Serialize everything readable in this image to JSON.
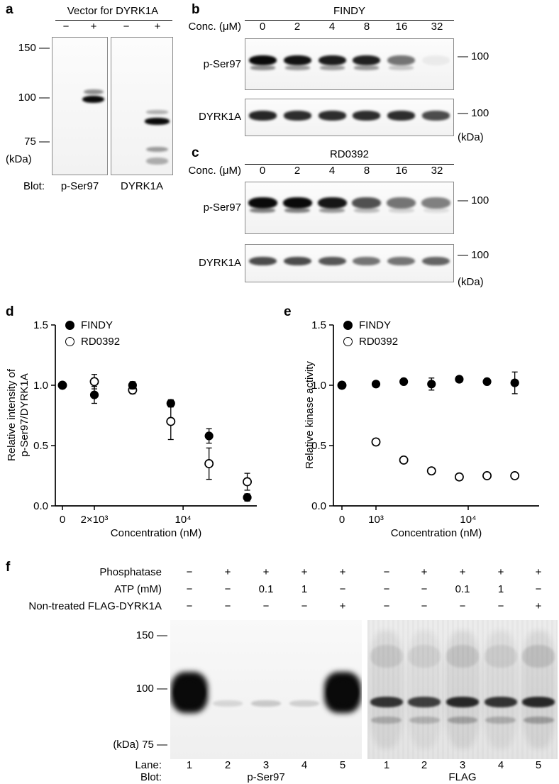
{
  "panel_a": {
    "label": "a",
    "title": "Vector for DYRK1A",
    "signs": [
      "−",
      "+",
      "−",
      "+"
    ],
    "markers": [
      "150 —",
      "100 —",
      "75 —"
    ],
    "kda_label": "(kDa)",
    "blot_label": "Blot:",
    "blot_names": [
      "p-Ser97",
      "DYRK1A"
    ],
    "blot_images": [
      {
        "lanes": 2,
        "bands": [
          {
            "y": 0.45,
            "h": 0.055,
            "w": 0.8,
            "intensities": [
              0,
              1
            ]
          },
          {
            "y": 0.395,
            "h": 0.038,
            "w": 0.74,
            "intensities": [
              0,
              0.45
            ]
          }
        ]
      },
      {
        "lanes": 2,
        "bands": [
          {
            "y": 0.61,
            "h": 0.05,
            "w": 0.8,
            "intensities": [
              0,
              1
            ]
          },
          {
            "y": 0.545,
            "h": 0.03,
            "w": 0.7,
            "intensities": [
              0,
              0.3
            ]
          },
          {
            "y": 0.815,
            "h": 0.038,
            "w": 0.72,
            "intensities": [
              0,
              0.38
            ]
          },
          {
            "y": 0.9,
            "h": 0.05,
            "w": 0.72,
            "intensities": [
              0,
              0.3
            ]
          }
        ]
      }
    ]
  },
  "panel_b": {
    "label": "b",
    "title": "FINDY",
    "conc_label": "Conc. (μM)",
    "conc_values": [
      "0",
      "2",
      "4",
      "8",
      "16",
      "32"
    ],
    "kda_label": "(kDa)",
    "rows": [
      {
        "name": "p-Ser97",
        "marker": "— 100",
        "blot": {
          "lanes": 6,
          "bands": [
            {
              "y": 0.42,
              "h": 0.2,
              "w": 0.8,
              "intensities": [
                1,
                0.96,
                0.92,
                0.9,
                0.55,
                0.05
              ]
            },
            {
              "y": 0.57,
              "h": 0.09,
              "w": 0.72,
              "intensities": [
                0.45,
                0.4,
                0.38,
                0.4,
                0.2,
                0
              ]
            }
          ]
        }
      },
      {
        "name": "DYRK1A",
        "marker": "— 100",
        "blot": {
          "lanes": 6,
          "bands": [
            {
              "y": 0.45,
              "h": 0.26,
              "w": 0.8,
              "intensities": [
                0.88,
                0.85,
                0.85,
                0.85,
                0.85,
                0.72
              ]
            }
          ]
        }
      }
    ]
  },
  "panel_c": {
    "label": "c",
    "title": "RD0392",
    "conc_label": "Conc. (μM)",
    "conc_values": [
      "0",
      "2",
      "4",
      "8",
      "16",
      "32"
    ],
    "kda_label": "(kDa)",
    "rows": [
      {
        "name": "p-Ser97",
        "marker": "— 100",
        "blot": {
          "lanes": 6,
          "bands": [
            {
              "y": 0.4,
              "h": 0.22,
              "w": 0.84,
              "intensities": [
                1,
                1,
                0.95,
                0.7,
                0.55,
                0.5
              ]
            },
            {
              "y": 0.55,
              "h": 0.09,
              "w": 0.74,
              "intensities": [
                0.5,
                0.5,
                0.4,
                0.25,
                0.15,
                0.1
              ]
            }
          ]
        }
      },
      {
        "name": "DYRK1A",
        "marker": "— 100",
        "blot": {
          "lanes": 6,
          "bands": [
            {
              "y": 0.44,
              "h": 0.24,
              "w": 0.8,
              "intensities": [
                0.72,
                0.72,
                0.68,
                0.55,
                0.55,
                0.62
              ]
            }
          ]
        }
      }
    ]
  },
  "chart_data": [
    {
      "panel": "d",
      "type": "scatter",
      "xlabel": "Concentration (nM)",
      "ylabel": "Relative intensity of p-Ser97/DYRK1A",
      "ylabel_lines": [
        "Relative intensity of",
        "p-Ser97/DYRK1A"
      ],
      "ylim": [
        0,
        1.5
      ],
      "yticks": [
        {
          "value": 0,
          "label": "0.0"
        },
        {
          "value": 0.5,
          "label": "0.5"
        },
        {
          "value": 1,
          "label": "1.0"
        },
        {
          "value": 1.5,
          "label": "1.5"
        }
      ],
      "xscale": "log (broken at 0)",
      "xticks": [
        {
          "value": 0,
          "label": "0"
        },
        {
          "value": 2000,
          "label": "2×10³"
        },
        {
          "value": 10000,
          "label": "10⁴"
        }
      ],
      "legend_position": "top-left",
      "series": [
        {
          "name": "FINDY",
          "marker": "filled-circle",
          "x": [
            0,
            2000,
            4000,
            8000,
            16000,
            32000
          ],
          "y": [
            1.0,
            0.92,
            1.0,
            0.85,
            0.58,
            0.07
          ],
          "err": [
            0,
            0.07,
            0.03,
            0.03,
            0.06,
            0.03
          ]
        },
        {
          "name": "RD0392",
          "marker": "open-circle",
          "x": [
            0,
            2000,
            4000,
            8000,
            16000,
            32000
          ],
          "y": [
            1.0,
            1.03,
            0.96,
            0.7,
            0.35,
            0.2
          ],
          "err": [
            0,
            0.06,
            0.03,
            0.15,
            0.13,
            0.07
          ]
        }
      ]
    },
    {
      "panel": "e",
      "type": "scatter",
      "xlabel": "Concentration (nM)",
      "ylabel": "Relative kinase activity",
      "ylabel_lines": [
        "Relative kinase activity"
      ],
      "ylim": [
        0,
        1.5
      ],
      "yticks": [
        {
          "value": 0,
          "label": "0.0"
        },
        {
          "value": 0.5,
          "label": "0.5"
        },
        {
          "value": 1,
          "label": "1.0"
        },
        {
          "value": 1.5,
          "label": "1.5"
        }
      ],
      "xscale": "log (broken at 0)",
      "xticks": [
        {
          "value": 0,
          "label": "0"
        },
        {
          "value": 1000,
          "label": "10³"
        },
        {
          "value": 10000,
          "label": "10⁴"
        }
      ],
      "legend_position": "top-left",
      "series": [
        {
          "name": "FINDY",
          "marker": "filled-circle",
          "x": [
            0,
            1000,
            2000,
            4000,
            8000,
            16000,
            32000
          ],
          "y": [
            1.0,
            1.01,
            1.03,
            1.01,
            1.05,
            1.03,
            1.02
          ],
          "err": [
            0,
            0,
            0,
            0.05,
            0,
            0,
            0.09
          ]
        },
        {
          "name": "RD0392",
          "marker": "open-circle",
          "x": [
            0,
            1000,
            2000,
            4000,
            8000,
            16000,
            32000
          ],
          "y": [
            1.0,
            0.53,
            0.38,
            0.29,
            0.24,
            0.25,
            0.25
          ],
          "err": [
            0,
            0,
            0,
            0,
            0,
            0,
            0
          ]
        }
      ]
    }
  ],
  "panel_f": {
    "label": "f",
    "rows": [
      {
        "label": "Phosphatase",
        "values": [
          "−",
          "+",
          "+",
          "+",
          "+",
          "−",
          "+",
          "+",
          "+",
          "+"
        ]
      },
      {
        "label": "ATP (mM)",
        "values": [
          "−",
          "−",
          "0.1",
          "1",
          "−",
          "−",
          "−",
          "0.1",
          "1",
          "−"
        ]
      },
      {
        "label": "Non-treated FLAG-DYRK1A",
        "values": [
          "−",
          "−",
          "−",
          "−",
          "+",
          "−",
          "−",
          "−",
          "−",
          "+"
        ]
      }
    ],
    "markers": [
      "150 —",
      "100 —"
    ],
    "kda_75_label": "(kDa) 75 —",
    "lane_label": "Lane:",
    "lane_numbers": [
      "1",
      "2",
      "3",
      "4",
      "5",
      "1",
      "2",
      "3",
      "4",
      "5"
    ],
    "blot_label": "Blot:",
    "blot_names": [
      "p-Ser97",
      "FLAG"
    ],
    "blot_images": [
      {
        "lanes": 5,
        "bands": [
          {
            "y": 0.52,
            "h": 0.3,
            "w": 0.96,
            "blob": true,
            "intensities": [
              1,
              0,
              0,
              0,
              1
            ]
          },
          {
            "y": 0.52,
            "h": 0.16,
            "w": 0.82,
            "intensities": [
              1,
              0,
              0,
              0,
              1
            ]
          },
          {
            "y": 0.6,
            "h": 0.045,
            "w": 0.76,
            "intensities": [
              0,
              0.12,
              0.18,
              0.15,
              0
            ]
          }
        ]
      },
      {
        "lanes": 5,
        "bands": [
          {
            "y": 0.5,
            "h": 0.85,
            "w": 0.92,
            "blob": true,
            "intensities": [
              0.07,
              0.05,
              0.08,
              0.06,
              0.08
            ]
          },
          {
            "y": 0.59,
            "h": 0.075,
            "w": 0.86,
            "intensities": [
              0.8,
              0.75,
              0.85,
              0.8,
              0.85
            ]
          },
          {
            "y": 0.72,
            "h": 0.05,
            "w": 0.8,
            "intensities": [
              0.22,
              0.2,
              0.26,
              0.22,
              0.28
            ]
          },
          {
            "y": 0.26,
            "h": 0.16,
            "w": 0.86,
            "intensities": [
              0.09,
              0.07,
              0.1,
              0.08,
              0.12
            ]
          }
        ]
      }
    ]
  }
}
